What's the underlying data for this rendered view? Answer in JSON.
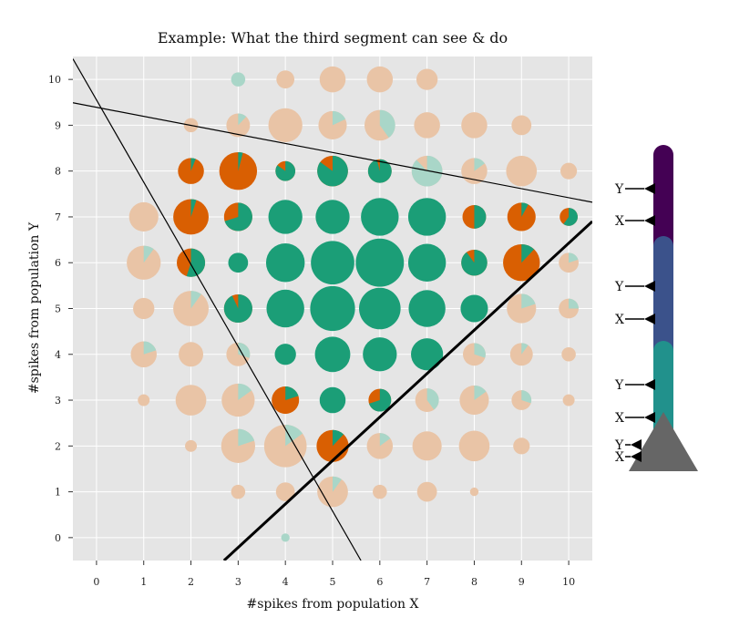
{
  "chart_data": {
    "type": "scatter",
    "title": "Example: What the third segment can see & do",
    "xlabel": "#spikes from population X",
    "ylabel": "#spikes from population Y",
    "xlim": [
      -0.5,
      10.5
    ],
    "ylim": [
      -0.5,
      10.5
    ],
    "xticks": [
      "0",
      "1",
      "2",
      "3",
      "4",
      "5",
      "6",
      "7",
      "8",
      "9",
      "10"
    ],
    "yticks": [
      "0",
      "1",
      "2",
      "3",
      "4",
      "5",
      "6",
      "7",
      "8",
      "9",
      "10"
    ],
    "grid": true,
    "colors": {
      "orange": "#d95f02",
      "teal": "#1b9e77",
      "faded_orange": "#e9c4a6",
      "faded_teal": "#a9d6c8",
      "background": "#e5e5e5"
    },
    "points": [
      {
        "x": 3,
        "y": 10,
        "r": 0.3,
        "teal": 1.0,
        "active": false
      },
      {
        "x": 4,
        "y": 10,
        "r": 0.38,
        "teal": 0.0,
        "active": false
      },
      {
        "x": 5,
        "y": 10,
        "r": 0.55,
        "teal": 0.0,
        "active": false
      },
      {
        "x": 6,
        "y": 10,
        "r": 0.55,
        "teal": 0.0,
        "active": false
      },
      {
        "x": 7,
        "y": 10,
        "r": 0.45,
        "teal": 0.0,
        "active": false
      },
      {
        "x": 2,
        "y": 9,
        "r": 0.3,
        "teal": 0.0,
        "active": false
      },
      {
        "x": 3,
        "y": 9,
        "r": 0.5,
        "teal": 0.12,
        "active": false
      },
      {
        "x": 4,
        "y": 9,
        "r": 0.72,
        "teal": 0.0,
        "active": false
      },
      {
        "x": 5,
        "y": 9,
        "r": 0.6,
        "teal": 0.18,
        "active": false
      },
      {
        "x": 6,
        "y": 9,
        "r": 0.65,
        "teal": 0.4,
        "active": false
      },
      {
        "x": 7,
        "y": 9,
        "r": 0.55,
        "teal": 0.0,
        "active": false
      },
      {
        "x": 8,
        "y": 9,
        "r": 0.55,
        "teal": 0.0,
        "active": false
      },
      {
        "x": 9,
        "y": 9,
        "r": 0.42,
        "teal": 0.0,
        "active": false
      },
      {
        "x": 2,
        "y": 8,
        "r": 0.55,
        "teal": 0.06,
        "active": true
      },
      {
        "x": 3,
        "y": 8,
        "r": 0.8,
        "teal": 0.04,
        "active": true
      },
      {
        "x": 4,
        "y": 8,
        "r": 0.42,
        "teal": 0.85,
        "active": true
      },
      {
        "x": 5,
        "y": 8,
        "r": 0.65,
        "teal": 0.85,
        "active": true
      },
      {
        "x": 6,
        "y": 8,
        "r": 0.5,
        "teal": 0.96,
        "active": true
      },
      {
        "x": 7,
        "y": 8,
        "r": 0.65,
        "teal": 0.88,
        "active": false
      },
      {
        "x": 8,
        "y": 8,
        "r": 0.55,
        "teal": 0.15,
        "active": false
      },
      {
        "x": 9,
        "y": 8,
        "r": 0.65,
        "teal": 0.0,
        "active": false
      },
      {
        "x": 10,
        "y": 8,
        "r": 0.35,
        "teal": 0.0,
        "active": false
      },
      {
        "x": 1,
        "y": 7,
        "r": 0.62,
        "teal": 0.0,
        "active": false
      },
      {
        "x": 2,
        "y": 7,
        "r": 0.75,
        "teal": 0.05,
        "active": true
      },
      {
        "x": 3,
        "y": 7,
        "r": 0.6,
        "teal": 0.7,
        "active": true
      },
      {
        "x": 4,
        "y": 7,
        "r": 0.72,
        "teal": 1.0,
        "active": true
      },
      {
        "x": 5,
        "y": 7,
        "r": 0.72,
        "teal": 1.0,
        "active": true
      },
      {
        "x": 6,
        "y": 7,
        "r": 0.8,
        "teal": 1.0,
        "active": true
      },
      {
        "x": 7,
        "y": 7,
        "r": 0.8,
        "teal": 1.0,
        "active": true
      },
      {
        "x": 8,
        "y": 7,
        "r": 0.5,
        "teal": 0.5,
        "active": true
      },
      {
        "x": 9,
        "y": 7,
        "r": 0.6,
        "teal": 0.08,
        "active": true
      },
      {
        "x": 10,
        "y": 7,
        "r": 0.38,
        "teal": 0.6,
        "active": true
      },
      {
        "x": 1,
        "y": 6,
        "r": 0.72,
        "teal": 0.1,
        "active": false
      },
      {
        "x": 2,
        "y": 6,
        "r": 0.6,
        "teal": 0.55,
        "active": true
      },
      {
        "x": 3,
        "y": 6,
        "r": 0.42,
        "teal": 1.0,
        "active": true
      },
      {
        "x": 4,
        "y": 6,
        "r": 0.82,
        "teal": 1.0,
        "active": true
      },
      {
        "x": 5,
        "y": 6,
        "r": 0.92,
        "teal": 1.0,
        "active": true
      },
      {
        "x": 6,
        "y": 6,
        "r": 1.02,
        "teal": 1.0,
        "active": true
      },
      {
        "x": 7,
        "y": 6,
        "r": 0.8,
        "teal": 1.0,
        "active": true
      },
      {
        "x": 8,
        "y": 6,
        "r": 0.55,
        "teal": 0.9,
        "active": true
      },
      {
        "x": 9,
        "y": 6,
        "r": 0.78,
        "teal": 0.12,
        "active": true
      },
      {
        "x": 10,
        "y": 6,
        "r": 0.42,
        "teal": 0.2,
        "active": false
      },
      {
        "x": 1,
        "y": 5,
        "r": 0.45,
        "teal": 0.0,
        "active": false
      },
      {
        "x": 2,
        "y": 5,
        "r": 0.75,
        "teal": 0.1,
        "active": false
      },
      {
        "x": 3,
        "y": 5,
        "r": 0.6,
        "teal": 0.93,
        "active": true
      },
      {
        "x": 4,
        "y": 5,
        "r": 0.8,
        "teal": 1.0,
        "active": true
      },
      {
        "x": 5,
        "y": 5,
        "r": 0.95,
        "teal": 1.0,
        "active": true
      },
      {
        "x": 6,
        "y": 5,
        "r": 0.88,
        "teal": 1.0,
        "active": true
      },
      {
        "x": 7,
        "y": 5,
        "r": 0.78,
        "teal": 1.0,
        "active": true
      },
      {
        "x": 8,
        "y": 5,
        "r": 0.58,
        "teal": 1.0,
        "active": true
      },
      {
        "x": 9,
        "y": 5,
        "r": 0.62,
        "teal": 0.2,
        "active": false
      },
      {
        "x": 10,
        "y": 5,
        "r": 0.42,
        "teal": 0.25,
        "active": false
      },
      {
        "x": 1,
        "y": 4,
        "r": 0.55,
        "teal": 0.2,
        "active": false
      },
      {
        "x": 2,
        "y": 4,
        "r": 0.52,
        "teal": 0.0,
        "active": false
      },
      {
        "x": 3,
        "y": 4,
        "r": 0.5,
        "teal": 0.3,
        "active": false
      },
      {
        "x": 4,
        "y": 4,
        "r": 0.45,
        "teal": 1.0,
        "active": true
      },
      {
        "x": 5,
        "y": 4,
        "r": 0.75,
        "teal": 1.0,
        "active": true
      },
      {
        "x": 6,
        "y": 4,
        "r": 0.72,
        "teal": 1.0,
        "active": true
      },
      {
        "x": 7,
        "y": 4,
        "r": 0.68,
        "teal": 1.0,
        "active": true
      },
      {
        "x": 8,
        "y": 4,
        "r": 0.48,
        "teal": 0.3,
        "active": false
      },
      {
        "x": 9,
        "y": 4,
        "r": 0.48,
        "teal": 0.1,
        "active": false
      },
      {
        "x": 10,
        "y": 4,
        "r": 0.3,
        "teal": 0.0,
        "active": false
      },
      {
        "x": 1,
        "y": 3,
        "r": 0.25,
        "teal": 0.0,
        "active": false
      },
      {
        "x": 2,
        "y": 3,
        "r": 0.65,
        "teal": 0.0,
        "active": false
      },
      {
        "x": 3,
        "y": 3,
        "r": 0.7,
        "teal": 0.15,
        "active": false
      },
      {
        "x": 4,
        "y": 3,
        "r": 0.58,
        "teal": 0.2,
        "active": true
      },
      {
        "x": 5,
        "y": 3,
        "r": 0.55,
        "teal": 1.0,
        "active": true
      },
      {
        "x": 6,
        "y": 3,
        "r": 0.48,
        "teal": 0.7,
        "active": true
      },
      {
        "x": 7,
        "y": 3,
        "r": 0.5,
        "teal": 0.4,
        "active": false
      },
      {
        "x": 8,
        "y": 3,
        "r": 0.62,
        "teal": 0.15,
        "active": false
      },
      {
        "x": 9,
        "y": 3,
        "r": 0.42,
        "teal": 0.3,
        "active": false
      },
      {
        "x": 10,
        "y": 3,
        "r": 0.25,
        "teal": 0.0,
        "active": false
      },
      {
        "x": 2,
        "y": 2,
        "r": 0.25,
        "teal": 0.0,
        "active": false
      },
      {
        "x": 3,
        "y": 2,
        "r": 0.72,
        "teal": 0.2,
        "active": false
      },
      {
        "x": 4,
        "y": 2,
        "r": 0.9,
        "teal": 0.15,
        "active": false
      },
      {
        "x": 5,
        "y": 2,
        "r": 0.68,
        "teal": 0.12,
        "active": true
      },
      {
        "x": 6,
        "y": 2,
        "r": 0.55,
        "teal": 0.15,
        "active": false
      },
      {
        "x": 7,
        "y": 2,
        "r": 0.62,
        "teal": 0.0,
        "active": false
      },
      {
        "x": 8,
        "y": 2,
        "r": 0.65,
        "teal": 0.0,
        "active": false
      },
      {
        "x": 9,
        "y": 2,
        "r": 0.35,
        "teal": 0.0,
        "active": false
      },
      {
        "x": 3,
        "y": 1,
        "r": 0.3,
        "teal": 0.0,
        "active": false
      },
      {
        "x": 4,
        "y": 1,
        "r": 0.4,
        "teal": 0.0,
        "active": false
      },
      {
        "x": 5,
        "y": 1,
        "r": 0.65,
        "teal": 0.1,
        "active": false
      },
      {
        "x": 6,
        "y": 1,
        "r": 0.3,
        "teal": 0.0,
        "active": false
      },
      {
        "x": 7,
        "y": 1,
        "r": 0.42,
        "teal": 0.0,
        "active": false
      },
      {
        "x": 8,
        "y": 1,
        "r": 0.18,
        "teal": 0.0,
        "active": false
      },
      {
        "x": 4,
        "y": 0,
        "r": 0.18,
        "teal": 1.0,
        "active": false
      }
    ],
    "lines": [
      {
        "x1": -0.5,
        "y1": 9.49,
        "x2": 10.5,
        "y2": 7.32,
        "width": 1.2
      },
      {
        "x1": -0.5,
        "y1": 10.45,
        "x2": 5.6,
        "y2": -0.5,
        "width": 1.2
      },
      {
        "x1": 2.7,
        "y1": -0.5,
        "x2": 10.5,
        "y2": 6.9,
        "width": 3
      }
    ]
  },
  "dendrite": {
    "segment_colors": [
      "#440154",
      "#3b528b",
      "#21918c"
    ],
    "soma_color": "#666666",
    "labels": [
      "Y",
      "X",
      "Y",
      "X",
      "Y",
      "X",
      "Y",
      "X"
    ]
  }
}
